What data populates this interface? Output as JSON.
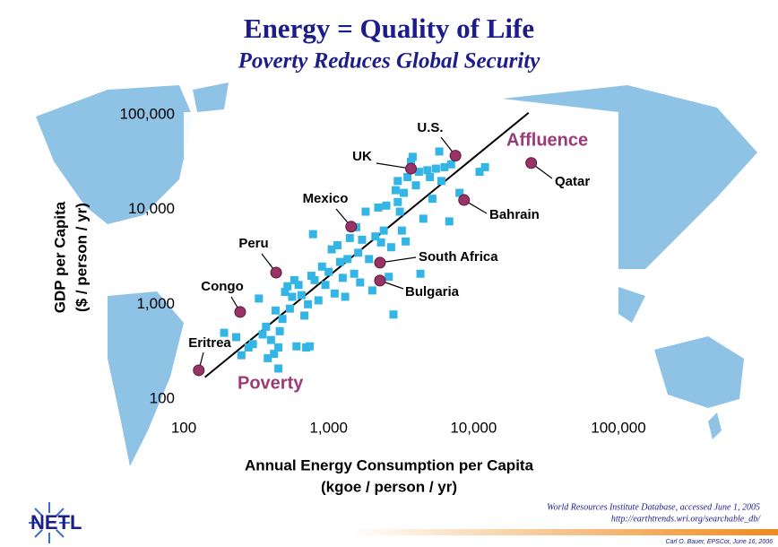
{
  "chart_data": {
    "type": "scatter",
    "title": "Energy = Quality of Life",
    "subtitle": "Poverty Reduces Global Security",
    "x_label": [
      "Annual Energy Consumption per Capita",
      "(kgoe / person / yr)"
    ],
    "y_label": [
      "GDP per Capita",
      "($ / person / yr)"
    ],
    "log_x": true,
    "log_y": true,
    "xlim": [
      100,
      100000
    ],
    "ylim": [
      100,
      100000
    ],
    "xticks": [
      100,
      {
        "value": 1000,
        "label": "1,000"
      },
      {
        "value": 10000,
        "label": "10,000"
      },
      {
        "value": 100000,
        "label": "100,000"
      }
    ],
    "yticks": [
      100,
      {
        "value": 1000,
        "label": "1,000"
      },
      {
        "value": 10000,
        "label": "10,000"
      },
      {
        "value": 100000,
        "label": "100,000"
      }
    ],
    "points": {
      "color": "#33b5e5",
      "x": [
        190,
        230,
        250,
        280,
        300,
        330,
        350,
        370,
        380,
        400,
        420,
        430,
        450,
        450,
        460,
        480,
        500,
        520,
        540,
        560,
        580,
        600,
        620,
        650,
        680,
        700,
        720,
        740,
        760,
        780,
        800,
        850,
        900,
        950,
        1000,
        1050,
        1100,
        1150,
        1200,
        1250,
        1300,
        1350,
        1400,
        1500,
        1550,
        1600,
        1650,
        1700,
        1800,
        1900,
        2000,
        2100,
        2200,
        2300,
        2400,
        2500,
        2600,
        2700,
        2800,
        2900,
        3000,
        3000,
        3100,
        3200,
        3300,
        3500,
        3700,
        3800,
        4000,
        4200,
        4300,
        4500,
        4800,
        5000,
        5200,
        5500,
        5800,
        6000,
        6300,
        6800,
        7000,
        8000,
        11000,
        12000,
        3400
      ],
      "y": [
        500,
        450,
        290,
        350,
        380,
        1150,
        480,
        580,
        270,
        420,
        300,
        860,
        210,
        350,
        520,
        700,
        1350,
        1550,
        900,
        1200,
        1800,
        360,
        1600,
        1250,
        760,
        350,
        1000,
        360,
        2000,
        5500,
        1800,
        1100,
        2500,
        1600,
        2200,
        3800,
        1300,
        4200,
        2800,
        1900,
        1200,
        3000,
        5000,
        2100,
        6500,
        3500,
        1700,
        4800,
        9500,
        3000,
        1400,
        5200,
        10500,
        4500,
        6000,
        11000,
        1950,
        4000,
        780,
        16000,
        20000,
        12000,
        9500,
        6000,
        15000,
        22000,
        32000,
        36000,
        18000,
        25000,
        2100,
        8000,
        26000,
        22000,
        13000,
        27000,
        41000,
        20000,
        28000,
        7500,
        30000,
        15000,
        25000,
        28000,
        4600
      ]
    },
    "highlighted": {
      "color": "#993366",
      "labels": [
        "U.S.",
        "UK",
        "Qatar",
        "Bahrain",
        "Mexico",
        "South Africa",
        "Bulgaria",
        "Peru",
        "Congo",
        "Eritrea"
      ],
      "x": [
        7500,
        3700,
        25000,
        8600,
        1430,
        2260,
        2260,
        434,
        245,
        127
      ],
      "y": [
        37000,
        27000,
        31000,
        12600,
        6600,
        2750,
        1780,
        2160,
        830,
        201
      ]
    },
    "trend_line": {
      "color": "#000000",
      "x": [
        140,
        24000
      ],
      "y": [
        170,
        105000
      ]
    },
    "annotations": {
      "color": "#9b3a78",
      "texts": [
        "Affluence",
        "Poverty"
      ]
    },
    "source": [
      "World Resources Institute Database, accessed June 1, 2005",
      "http://earthtrends.wri.org/searchable_db/"
    ],
    "credit": "Carl O. Bauer, EPSCor, June 16, 2006",
    "logo": "NETL"
  }
}
